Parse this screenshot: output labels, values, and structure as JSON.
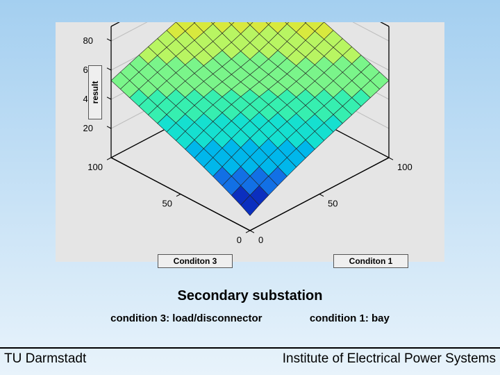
{
  "background": {
    "gradient_top": "#a4cff0",
    "gradient_bottom": "#e8f3fb"
  },
  "plot": {
    "panel_bg": "#e5e5e5",
    "type": "surface3d",
    "box_edge_color": "#000000",
    "mesh_line_color": "#222222",
    "grid_line_color": "#bdbdbd",
    "z_axis": {
      "label": "result",
      "min": 0,
      "max": 90,
      "ticks": [
        20,
        40,
        60,
        80
      ],
      "tick_fontsize": 13
    },
    "x_axis": {
      "label": "Conditon 1",
      "min": 0,
      "max": 100,
      "ticks": [
        0,
        50,
        100
      ],
      "tick_fontsize": 13
    },
    "y_axis": {
      "label": "Conditon 3",
      "min": 0,
      "max": 100,
      "ticks": [
        0,
        50,
        100
      ],
      "tick_fontsize": 13
    },
    "surface_grid_n": 15,
    "surface_min": 10,
    "surface_max": 90,
    "colormap": [
      "#0b2fbf",
      "#1270e5",
      "#00b7eb",
      "#15e0d0",
      "#36efb0",
      "#7af58a",
      "#b8f562",
      "#d8e93e",
      "#c4e336",
      "#a9dd30"
    ]
  },
  "labels": {
    "result_box": "result",
    "cond3_box": "Conditon 3",
    "cond1_box": "Conditon 1"
  },
  "section_title": "Secondary substation",
  "subcaptions": {
    "left": "condition 3: load/disconnector",
    "right": "condition 1: bay"
  },
  "footer": {
    "left": "TU Darmstadt",
    "right": "Institute of  Electrical Power Systems"
  }
}
